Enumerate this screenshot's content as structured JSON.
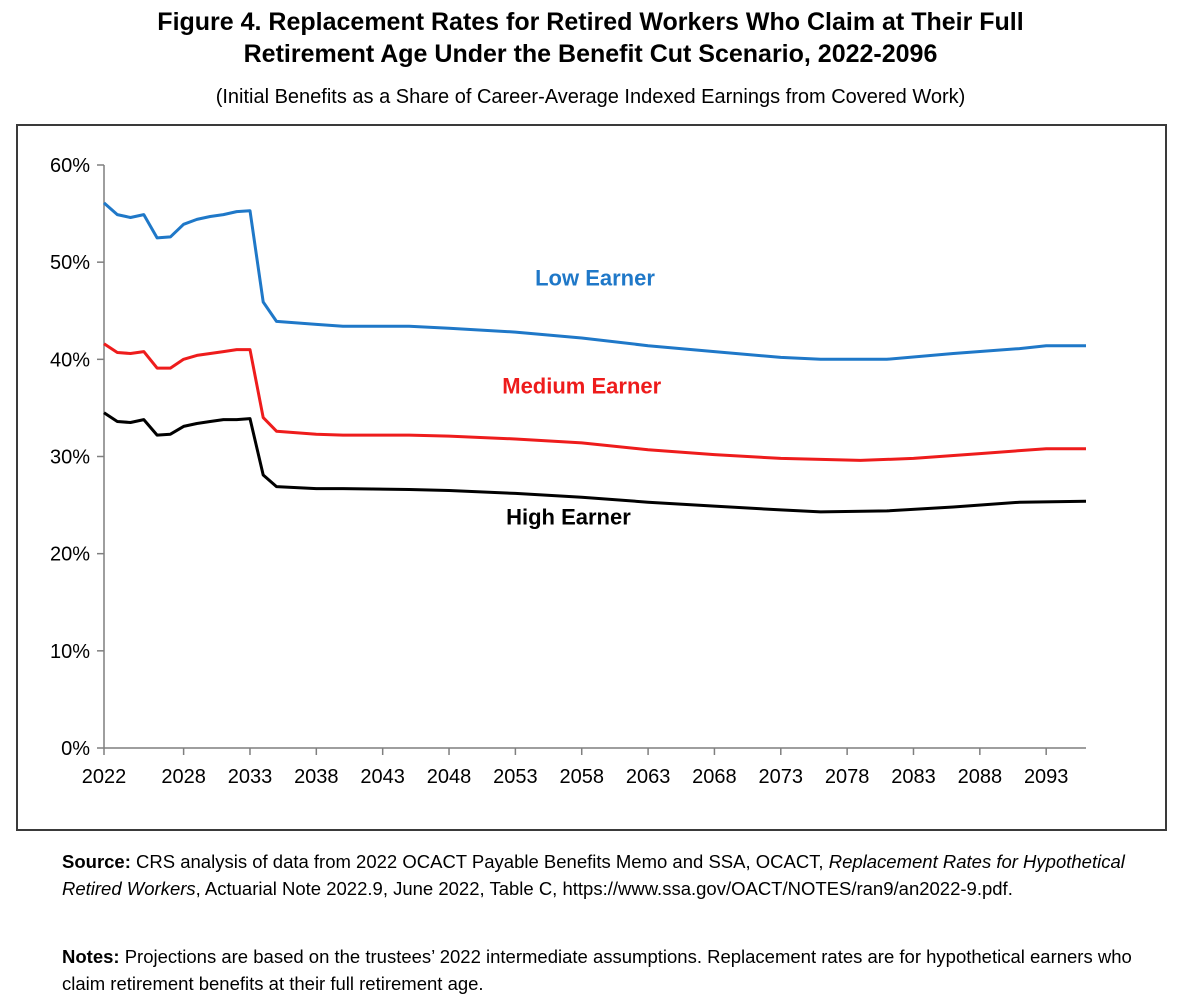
{
  "figure": {
    "title_line1": "Figure 4. Replacement Rates for Retired Workers Who Claim at Their Full",
    "title_line2": "Retirement Age Under the Benefit Cut Scenario, 2022-2096",
    "subtitle": "(Initial Benefits as a Share of Career-Average Indexed Earnings from Covered Work)"
  },
  "source": {
    "label": "Source:",
    "text_a": " CRS analysis of data from 2022 OCACT Payable Benefits Memo and SSA, OCACT, ",
    "text_italic": "Replacement Rates for Hypothetical Retired Workers",
    "text_b": ", Actuarial Note 2022.9, June 2022, Table C, https://www.ssa.gov/OACT/NOTES/ran9/an2022-9.pdf."
  },
  "notes": {
    "label": "Notes:",
    "text": " Projections are based on the trustees’ 2022 intermediate assumptions. Replacement rates are for hypothetical earners who claim retirement benefits at their full retirement age."
  },
  "chart_data": {
    "type": "line",
    "xlim": [
      2022,
      2096
    ],
    "ylim": [
      0,
      60
    ],
    "x_ticks": [
      2022,
      2028,
      2033,
      2038,
      2043,
      2048,
      2053,
      2058,
      2063,
      2068,
      2073,
      2078,
      2083,
      2088,
      2093
    ],
    "y_ticks": [
      0,
      10,
      20,
      30,
      40,
      50,
      60
    ],
    "y_tick_labels": [
      "0%",
      "10%",
      "20%",
      "30%",
      "40%",
      "50%",
      "60%"
    ],
    "grid": false,
    "legend": "inline labels",
    "series": [
      {
        "name": "Low Earner",
        "color": "#1f78c8",
        "points": [
          [
            2022,
            56.1
          ],
          [
            2023,
            54.9
          ],
          [
            2024,
            54.6
          ],
          [
            2025,
            54.9
          ],
          [
            2026,
            52.5
          ],
          [
            2027,
            52.6
          ],
          [
            2028,
            53.9
          ],
          [
            2029,
            54.4
          ],
          [
            2030,
            54.7
          ],
          [
            2031,
            54.9
          ],
          [
            2032,
            55.2
          ],
          [
            2033,
            55.3
          ],
          [
            2034,
            45.9
          ],
          [
            2035,
            43.9
          ],
          [
            2038,
            43.6
          ],
          [
            2040,
            43.4
          ],
          [
            2045,
            43.4
          ],
          [
            2048,
            43.2
          ],
          [
            2053,
            42.8
          ],
          [
            2058,
            42.2
          ],
          [
            2063,
            41.4
          ],
          [
            2068,
            40.8
          ],
          [
            2073,
            40.2
          ],
          [
            2076,
            40.0
          ],
          [
            2081,
            40.0
          ],
          [
            2086,
            40.6
          ],
          [
            2091,
            41.1
          ],
          [
            2093,
            41.4
          ],
          [
            2096,
            41.4
          ]
        ]
      },
      {
        "name": "Medium Earner",
        "color": "#ee1c1c",
        "points": [
          [
            2022,
            41.6
          ],
          [
            2023,
            40.7
          ],
          [
            2024,
            40.6
          ],
          [
            2025,
            40.8
          ],
          [
            2026,
            39.1
          ],
          [
            2027,
            39.1
          ],
          [
            2028,
            40.0
          ],
          [
            2029,
            40.4
          ],
          [
            2030,
            40.6
          ],
          [
            2031,
            40.8
          ],
          [
            2032,
            41.0
          ],
          [
            2033,
            41.0
          ],
          [
            2034,
            34.0
          ],
          [
            2035,
            32.6
          ],
          [
            2038,
            32.3
          ],
          [
            2040,
            32.2
          ],
          [
            2045,
            32.2
          ],
          [
            2048,
            32.1
          ],
          [
            2053,
            31.8
          ],
          [
            2058,
            31.4
          ],
          [
            2063,
            30.7
          ],
          [
            2068,
            30.2
          ],
          [
            2073,
            29.8
          ],
          [
            2076,
            29.7
          ],
          [
            2079,
            29.6
          ],
          [
            2083,
            29.8
          ],
          [
            2088,
            30.3
          ],
          [
            2093,
            30.8
          ],
          [
            2096,
            30.8
          ]
        ]
      },
      {
        "name": "High Earner",
        "color": "#000000",
        "points": [
          [
            2022,
            34.5
          ],
          [
            2023,
            33.6
          ],
          [
            2024,
            33.5
          ],
          [
            2025,
            33.8
          ],
          [
            2026,
            32.2
          ],
          [
            2027,
            32.3
          ],
          [
            2028,
            33.1
          ],
          [
            2029,
            33.4
          ],
          [
            2030,
            33.6
          ],
          [
            2031,
            33.8
          ],
          [
            2032,
            33.8
          ],
          [
            2033,
            33.9
          ],
          [
            2034,
            28.1
          ],
          [
            2035,
            26.9
          ],
          [
            2038,
            26.7
          ],
          [
            2040,
            26.7
          ],
          [
            2045,
            26.6
          ],
          [
            2048,
            26.5
          ],
          [
            2053,
            26.2
          ],
          [
            2058,
            25.8
          ],
          [
            2063,
            25.3
          ],
          [
            2068,
            24.9
          ],
          [
            2073,
            24.5
          ],
          [
            2076,
            24.3
          ],
          [
            2081,
            24.4
          ],
          [
            2086,
            24.8
          ],
          [
            2091,
            25.3
          ],
          [
            2096,
            25.4
          ]
        ]
      }
    ]
  }
}
